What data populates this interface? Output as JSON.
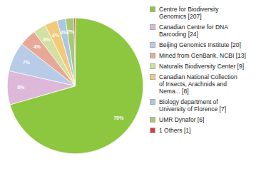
{
  "chart_data": {
    "type": "pie",
    "categories": [
      "Centre for Biodiversity\nGenomics [207]",
      "Canadian Centre for DNA\nBarcoding [24]",
      "Beijing Genomics Institute [20]",
      "Mined from GenBank, NCBI [13]",
      "Naturalis Biodiversity Center [9]",
      "Canadian National Collection\nof Insects, Arachnids and\nNema... [8]",
      "Biology department of\nUniversity of Florence [7]",
      "UMR Dynafor [6]",
      "1 Others [1]"
    ],
    "values": [
      70,
      8,
      7,
      4,
      3,
      3,
      2,
      2,
      0.3
    ],
    "value_labels": [
      "70%",
      "8%",
      "7%",
      "4%",
      "3%",
      "3%",
      "2%",
      "2%",
      null
    ],
    "colors": [
      "#8dc63f",
      "#ddb8d8",
      "#b8cce8",
      "#e8a898",
      "#d4e0a0",
      "#f5c97a",
      "#aac8e0",
      "#a8c878",
      "#d04040"
    ],
    "data_labels": true,
    "legend": "right"
  }
}
